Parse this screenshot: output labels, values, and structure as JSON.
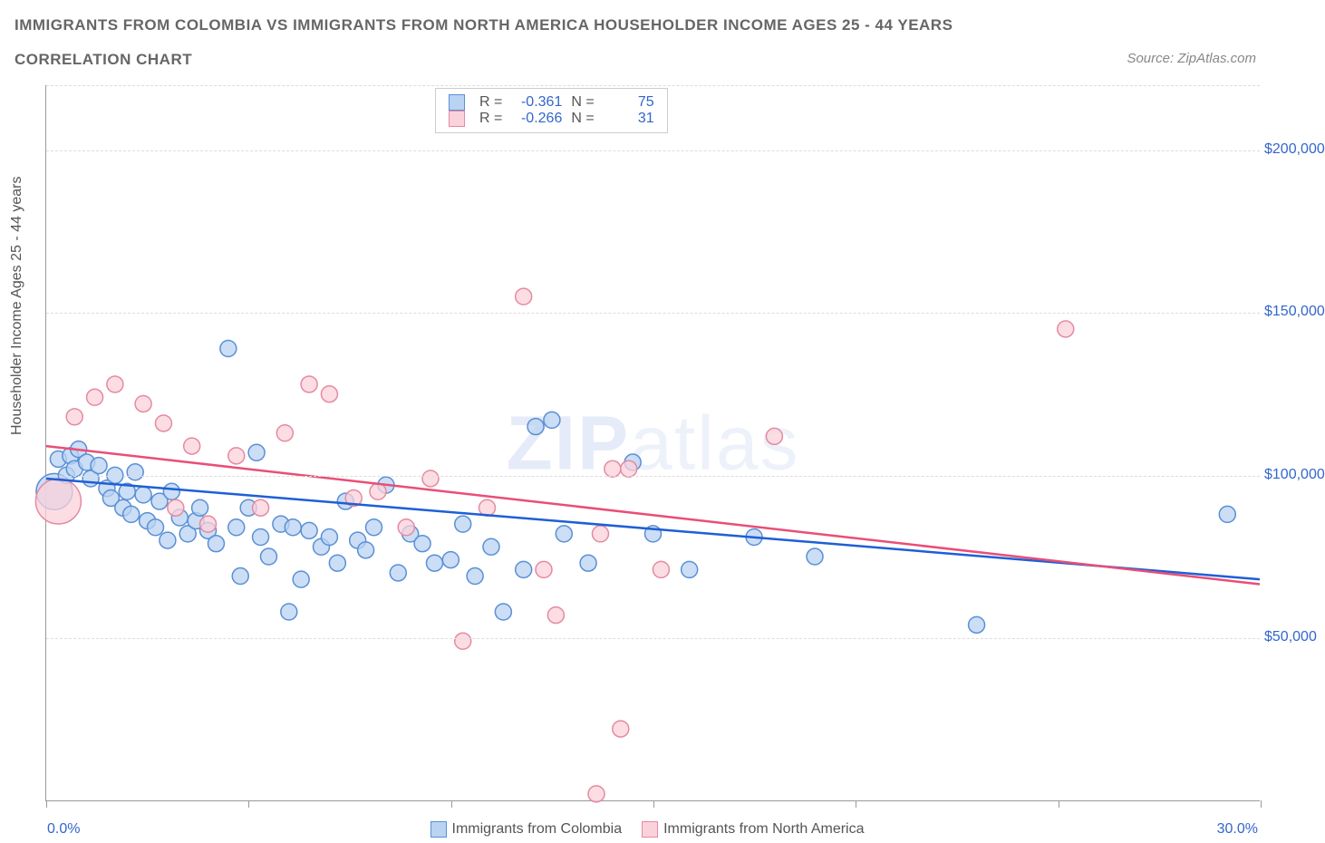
{
  "title_line1": "IMMIGRANTS FROM COLOMBIA VS IMMIGRANTS FROM NORTH AMERICA HOUSEHOLDER INCOME AGES 25 - 44 YEARS",
  "title_line2": "CORRELATION CHART",
  "source_text": "Source: ZipAtlas.com",
  "ylabel": "Householder Income Ages 25 - 44 years",
  "watermark_part1": "ZIP",
  "watermark_part2": "atlas",
  "chart": {
    "type": "scatter",
    "background_color": "#ffffff",
    "grid_color": "#dddddd",
    "axis_color": "#999999",
    "xlim": [
      0,
      30
    ],
    "ylim": [
      0,
      220000
    ],
    "x_tick_positions": [
      0,
      5,
      10,
      15,
      20,
      25,
      30
    ],
    "x_left_label": "0.0%",
    "x_right_label": "30.0%",
    "y_ticks": [
      {
        "value": 50000,
        "label": "$50,000"
      },
      {
        "value": 100000,
        "label": "$100,000"
      },
      {
        "value": 150000,
        "label": "$150,000"
      },
      {
        "value": 200000,
        "label": "$200,000"
      }
    ],
    "series": [
      {
        "name": "Immigrants from Colombia",
        "color_fill": "#b9d3f2",
        "color_stroke": "#5a8fd6",
        "trend_color": "#1e5fd6",
        "marker_radius": 9,
        "marker_opacity": 0.75,
        "stats": {
          "r": "-0.361",
          "n": "75"
        },
        "trend_line": {
          "x1": 0,
          "y1": 99000,
          "x2": 30,
          "y2": 68000
        },
        "points": [
          [
            0.2,
            95000,
            20
          ],
          [
            0.3,
            105000
          ],
          [
            0.5,
            100000
          ],
          [
            0.6,
            106000
          ],
          [
            0.7,
            102000
          ],
          [
            0.8,
            108000
          ],
          [
            1.0,
            104000
          ],
          [
            1.1,
            99000
          ],
          [
            1.3,
            103000
          ],
          [
            1.5,
            96000
          ],
          [
            1.6,
            93000
          ],
          [
            1.7,
            100000
          ],
          [
            1.9,
            90000
          ],
          [
            2.0,
            95000
          ],
          [
            2.1,
            88000
          ],
          [
            2.2,
            101000
          ],
          [
            2.4,
            94000
          ],
          [
            2.5,
            86000
          ],
          [
            2.7,
            84000
          ],
          [
            2.8,
            92000
          ],
          [
            3.0,
            80000
          ],
          [
            3.1,
            95000
          ],
          [
            3.3,
            87000
          ],
          [
            3.5,
            82000
          ],
          [
            3.7,
            86000
          ],
          [
            3.8,
            90000
          ],
          [
            4.0,
            83000
          ],
          [
            4.2,
            79000
          ],
          [
            4.5,
            139000
          ],
          [
            4.7,
            84000
          ],
          [
            4.8,
            69000
          ],
          [
            5.0,
            90000
          ],
          [
            5.2,
            107000
          ],
          [
            5.3,
            81000
          ],
          [
            5.5,
            75000
          ],
          [
            5.8,
            85000
          ],
          [
            6.0,
            58000
          ],
          [
            6.1,
            84000
          ],
          [
            6.3,
            68000
          ],
          [
            6.5,
            83000
          ],
          [
            6.8,
            78000
          ],
          [
            7.0,
            81000
          ],
          [
            7.2,
            73000
          ],
          [
            7.4,
            92000
          ],
          [
            7.7,
            80000
          ],
          [
            7.9,
            77000
          ],
          [
            8.1,
            84000
          ],
          [
            8.4,
            97000
          ],
          [
            8.7,
            70000
          ],
          [
            9.0,
            82000
          ],
          [
            9.3,
            79000
          ],
          [
            9.6,
            73000
          ],
          [
            10.0,
            74000
          ],
          [
            10.3,
            85000
          ],
          [
            10.6,
            69000
          ],
          [
            11.0,
            78000
          ],
          [
            11.3,
            58000
          ],
          [
            11.8,
            71000
          ],
          [
            12.1,
            115000
          ],
          [
            12.5,
            117000
          ],
          [
            12.8,
            82000
          ],
          [
            13.4,
            73000
          ],
          [
            14.5,
            104000
          ],
          [
            15.0,
            82000
          ],
          [
            15.9,
            71000
          ],
          [
            17.5,
            81000
          ],
          [
            19.0,
            75000
          ],
          [
            23.0,
            54000
          ],
          [
            29.2,
            88000
          ]
        ]
      },
      {
        "name": "Immigrants from North America",
        "color_fill": "#fbd2db",
        "color_stroke": "#e58aa0",
        "trend_color": "#e94e77",
        "marker_radius": 9,
        "marker_opacity": 0.75,
        "stats": {
          "r": "-0.266",
          "n": "31"
        },
        "trend_line": {
          "x1": 0,
          "y1": 109000,
          "x2": 30,
          "y2": 66500
        },
        "points": [
          [
            0.3,
            92000,
            25
          ],
          [
            0.7,
            118000
          ],
          [
            1.2,
            124000
          ],
          [
            1.7,
            128000
          ],
          [
            2.4,
            122000
          ],
          [
            2.9,
            116000
          ],
          [
            3.2,
            90000
          ],
          [
            3.6,
            109000
          ],
          [
            4.0,
            85000
          ],
          [
            4.7,
            106000
          ],
          [
            5.3,
            90000
          ],
          [
            5.9,
            113000
          ],
          [
            6.5,
            128000
          ],
          [
            7.0,
            125000
          ],
          [
            7.6,
            93000
          ],
          [
            8.2,
            95000
          ],
          [
            8.9,
            84000
          ],
          [
            9.5,
            99000
          ],
          [
            10.3,
            49000
          ],
          [
            10.9,
            90000
          ],
          [
            11.8,
            155000
          ],
          [
            12.3,
            71000
          ],
          [
            12.6,
            57000
          ],
          [
            13.7,
            82000
          ],
          [
            14.4,
            102000
          ],
          [
            15.2,
            71000
          ],
          [
            18.0,
            112000
          ],
          [
            13.6,
            2000
          ],
          [
            14.2,
            22000
          ],
          [
            25.2,
            145000
          ],
          [
            14.0,
            102000
          ]
        ]
      }
    ]
  },
  "bottom_legend": [
    {
      "label": "Immigrants from Colombia",
      "fill": "#b9d3f2",
      "stroke": "#5a8fd6"
    },
    {
      "label": "Immigrants from North America",
      "fill": "#fbd2db",
      "stroke": "#e58aa0"
    }
  ]
}
